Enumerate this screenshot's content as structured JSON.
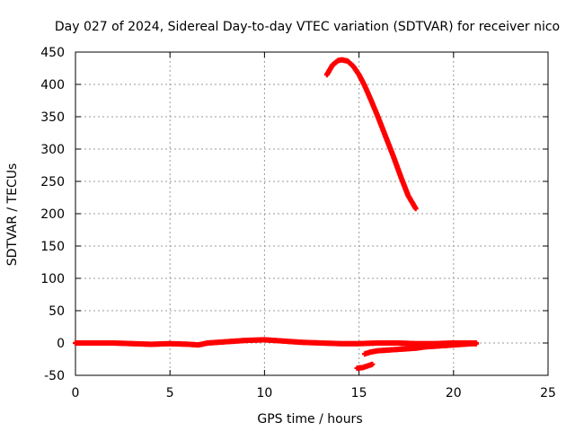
{
  "chart_data": {
    "type": "scatter",
    "title": "Day 027 of 2024, Sidereal Day-to-day VTEC variation (SDTVAR) for receiver nico",
    "xlabel": "GPS time / hours",
    "ylabel": "SDTVAR / TECUs",
    "xlim": [
      0,
      25
    ],
    "ylim": [
      -50,
      450
    ],
    "xticks": [
      "0",
      "5",
      "10",
      "15",
      "20",
      "25"
    ],
    "yticks": [
      "-50",
      "0",
      "50",
      "100",
      "150",
      "200",
      "250",
      "300",
      "350",
      "400",
      "450"
    ],
    "grid": true,
    "marker_color": "#ff0000",
    "series": [
      {
        "segment": "main-near-zero",
        "x": [
          0,
          1,
          2,
          3,
          4,
          5,
          6,
          6.5,
          7,
          8,
          9,
          10,
          11,
          12,
          13,
          14,
          15,
          16,
          17,
          18,
          19,
          20,
          21,
          21.2
        ],
        "y": [
          0,
          0,
          0,
          -1,
          -2,
          -1,
          -2,
          -3,
          0,
          2,
          4,
          5,
          3,
          1,
          0,
          -1,
          -1,
          0,
          0,
          -1,
          -1,
          0,
          0,
          0
        ]
      },
      {
        "segment": "rising-branch",
        "x": [
          15.3,
          15.6,
          16,
          16.5,
          17,
          17.5,
          18,
          18.5,
          19,
          19.5,
          20,
          20.5,
          21,
          21.2
        ],
        "y": [
          -17,
          -14,
          -12,
          -11,
          -10,
          -9,
          -8,
          -6,
          -5,
          -4,
          -3,
          -2,
          -1,
          -1
        ]
      },
      {
        "segment": "short-negative",
        "x": [
          14.9,
          15.2,
          15.5,
          15.7
        ],
        "y": [
          -39,
          -38,
          -35,
          -33
        ]
      },
      {
        "segment": "high-arc",
        "x": [
          13.3,
          13.6,
          13.9,
          14.1,
          14.4,
          14.7,
          15,
          15.3,
          15.6,
          16,
          16.4,
          16.8,
          17.2,
          17.6,
          18
        ],
        "y": [
          415,
          430,
          437,
          438,
          436,
          428,
          415,
          398,
          378,
          350,
          320,
          290,
          258,
          228,
          208
        ]
      }
    ]
  }
}
